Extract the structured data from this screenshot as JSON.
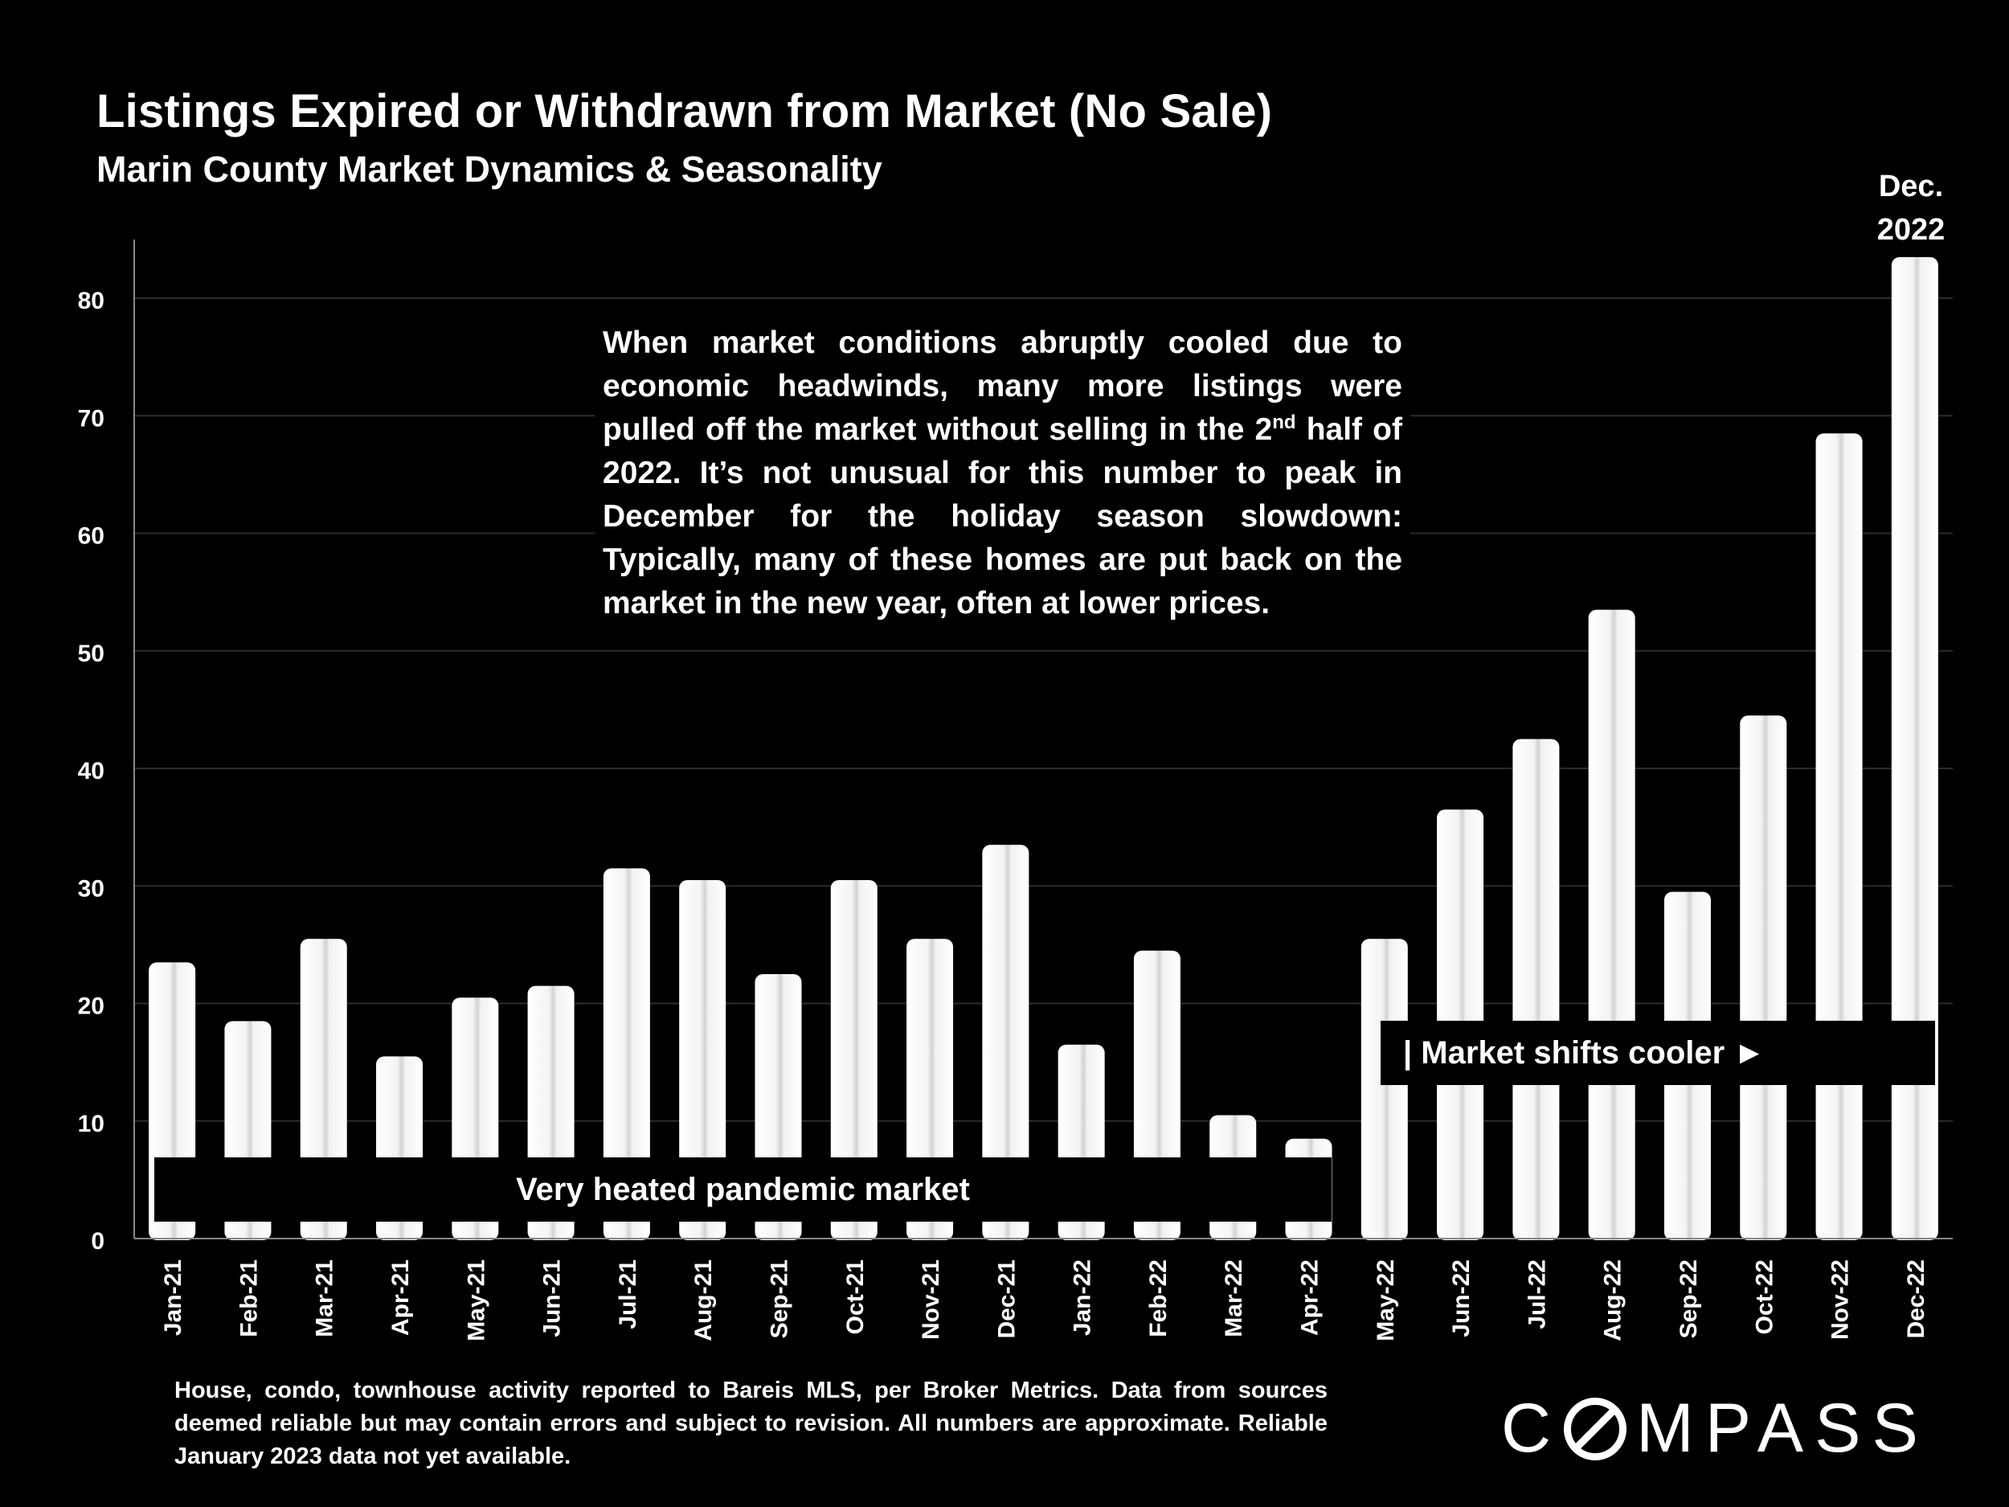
{
  "chart_data": {
    "type": "bar",
    "title": "Listings Expired or Withdrawn from Market (No Sale)",
    "subtitle": "Marin County Market Dynamics & Seasonality",
    "categories": [
      "Jan-21",
      "Feb-21",
      "Mar-21",
      "Apr-21",
      "May-21",
      "Jun-21",
      "Jul-21",
      "Aug-21",
      "Sep-21",
      "Oct-21",
      "Nov-21",
      "Dec-21",
      "Jan-22",
      "Feb-22",
      "Mar-22",
      "Apr-22",
      "May-22",
      "Jun-22",
      "Jul-22",
      "Aug-22",
      "Sep-22",
      "Oct-22",
      "Nov-22",
      "Dec-22"
    ],
    "values": [
      23.5,
      18.5,
      25.5,
      15.5,
      20.5,
      21.5,
      31.5,
      30.5,
      22.5,
      30.5,
      25.5,
      33.5,
      16.5,
      24.5,
      10.5,
      8.5,
      25.5,
      36.5,
      42.5,
      53.5,
      29.5,
      44.5,
      68.5,
      83.5
    ],
    "yticks": [
      0,
      10,
      20,
      30,
      40,
      50,
      60,
      70,
      80
    ],
    "ylim": [
      0,
      85
    ],
    "xlabel": "",
    "ylabel": "",
    "grid": true,
    "bar_color": "#ffffff"
  },
  "annotations": {
    "peak_label_line1": "Dec.",
    "peak_label_line2": "2022",
    "text_part1": "When market conditions abruptly cooled due to economic headwinds, many more listings were pulled off the market without selling in the 2",
    "text_sup": "nd",
    "text_part2": " half of 2022. It’s not unusual for this number to peak in December for the holiday season slowdown: Typically, many of these homes are put back on the market in the new year, often at lower prices.",
    "heated_band": "Very heated pandemic market",
    "cooler_band": "| Market shifts cooler ►"
  },
  "footnote": "House, condo, townhouse activity reported to Bareis MLS, per Broker Metrics. Data from sources deemed reliable but may contain errors and subject to revision. All numbers are approximate. Reliable January 2023 data not yet available.",
  "brand": {
    "part1": "C",
    "part2": "MPASS",
    "name": "COMPASS"
  }
}
